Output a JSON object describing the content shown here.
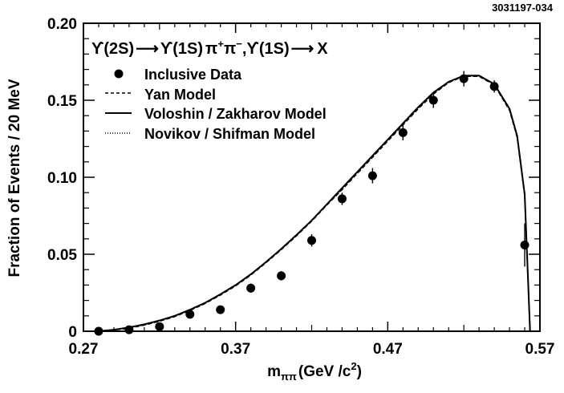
{
  "figure_id": "3031197-034",
  "chart_data": {
    "type": "scatter",
    "title": "",
    "annotation": {
      "part1": "ϒ(2S)",
      "arrow1": "⟶",
      "part2": "ϒ(1S)",
      "part3": "π",
      "sup_plus": "+",
      "part4": "π",
      "sup_minus": "−",
      "part5": ",ϒ(1S)",
      "arrow2": "⟶",
      "part6": "X"
    },
    "xlabel": {
      "main": "m",
      "sub": "ππ",
      "units": "(GeV /c",
      "sup": "2",
      "close": ")"
    },
    "ylabel": "Fraction of  Events / 20 MeV",
    "xlim": [
      0.27,
      0.57
    ],
    "ylim": [
      0,
      0.2
    ],
    "xticks": [
      {
        "value": 0.27,
        "label": "0.27"
      },
      {
        "value": 0.37,
        "label": "0.37"
      },
      {
        "value": 0.47,
        "label": "0.47"
      },
      {
        "value": 0.57,
        "label": "0.57"
      }
    ],
    "yticks": [
      {
        "value": 0,
        "label": "0"
      },
      {
        "value": 0.05,
        "label": "0.05"
      },
      {
        "value": 0.1,
        "label": "0.10"
      },
      {
        "value": 0.15,
        "label": "0.15"
      },
      {
        "value": 0.2,
        "label": "0.20"
      }
    ],
    "legend": [
      {
        "style": "marker",
        "label": "Inclusive Data"
      },
      {
        "style": "dashed",
        "label": "Yan  Model"
      },
      {
        "style": "solid",
        "label": "Voloshin / Zakharov  Model"
      },
      {
        "style": "dotted",
        "label": "Novikov / Shifman  Model"
      }
    ],
    "legend_position": "top-left",
    "series": [
      {
        "name": "Inclusive Data",
        "style": "marker",
        "x": [
          0.28,
          0.3,
          0.32,
          0.34,
          0.36,
          0.38,
          0.4,
          0.42,
          0.44,
          0.46,
          0.48,
          0.5,
          0.52,
          0.54,
          0.56
        ],
        "y": [
          0.0,
          0.001,
          0.003,
          0.011,
          0.014,
          0.028,
          0.036,
          0.059,
          0.086,
          0.101,
          0.129,
          0.15,
          0.164,
          0.159,
          0.056
        ],
        "yerr": [
          0.001,
          0.002,
          0.002,
          0.002,
          0.002,
          0.003,
          0.003,
          0.004,
          0.004,
          0.005,
          0.005,
          0.005,
          0.005,
          0.004,
          0.014
        ]
      },
      {
        "name": "Yan Model",
        "style": "dashed",
        "x": [
          0.279,
          0.29,
          0.3,
          0.31,
          0.32,
          0.33,
          0.34,
          0.35,
          0.36,
          0.37,
          0.38,
          0.39,
          0.4,
          0.41,
          0.42,
          0.43,
          0.44,
          0.45,
          0.46,
          0.47,
          0.48,
          0.49,
          0.5,
          0.51,
          0.52,
          0.53,
          0.54,
          0.55,
          0.555,
          0.56,
          0.5635
        ],
        "y": [
          0,
          0.0008,
          0.002,
          0.004,
          0.0065,
          0.0095,
          0.0135,
          0.018,
          0.0235,
          0.0295,
          0.0365,
          0.0445,
          0.053,
          0.062,
          0.0715,
          0.082,
          0.092,
          0.1025,
          0.113,
          0.1235,
          0.134,
          0.1445,
          0.154,
          0.1615,
          0.1655,
          0.1655,
          0.16,
          0.1435,
          0.126,
          0.088,
          0
        ]
      },
      {
        "name": "Voloshin / Zakharov Model",
        "style": "solid",
        "x": [
          0.279,
          0.29,
          0.3,
          0.31,
          0.32,
          0.33,
          0.34,
          0.35,
          0.36,
          0.37,
          0.38,
          0.39,
          0.4,
          0.41,
          0.42,
          0.43,
          0.44,
          0.45,
          0.46,
          0.47,
          0.48,
          0.49,
          0.5,
          0.51,
          0.52,
          0.53,
          0.54,
          0.55,
          0.555,
          0.56,
          0.5635
        ],
        "y": [
          0,
          0.001,
          0.0025,
          0.0045,
          0.007,
          0.01,
          0.014,
          0.0185,
          0.024,
          0.03,
          0.037,
          0.045,
          0.0535,
          0.0625,
          0.072,
          0.0825,
          0.093,
          0.1035,
          0.114,
          0.1245,
          0.135,
          0.1455,
          0.155,
          0.162,
          0.166,
          0.166,
          0.1605,
          0.1445,
          0.127,
          0.089,
          0
        ]
      },
      {
        "name": "Novikov / Shifman Model",
        "style": "dotted",
        "x": [
          0.279,
          0.29,
          0.3,
          0.31,
          0.32,
          0.33,
          0.34,
          0.35,
          0.36,
          0.37,
          0.38,
          0.39,
          0.4,
          0.41,
          0.42,
          0.43,
          0.44,
          0.45,
          0.46,
          0.47,
          0.48,
          0.49,
          0.5,
          0.51,
          0.52,
          0.53,
          0.54,
          0.55,
          0.555,
          0.56,
          0.5635
        ],
        "y": [
          0,
          0.0009,
          0.0022,
          0.0042,
          0.0068,
          0.0098,
          0.0138,
          0.0183,
          0.0238,
          0.0298,
          0.0368,
          0.0448,
          0.0533,
          0.0623,
          0.0718,
          0.0823,
          0.0925,
          0.103,
          0.1135,
          0.124,
          0.1345,
          0.145,
          0.1545,
          0.1618,
          0.1658,
          0.1658,
          0.1603,
          0.144,
          0.1265,
          0.0885,
          0
        ]
      }
    ]
  }
}
